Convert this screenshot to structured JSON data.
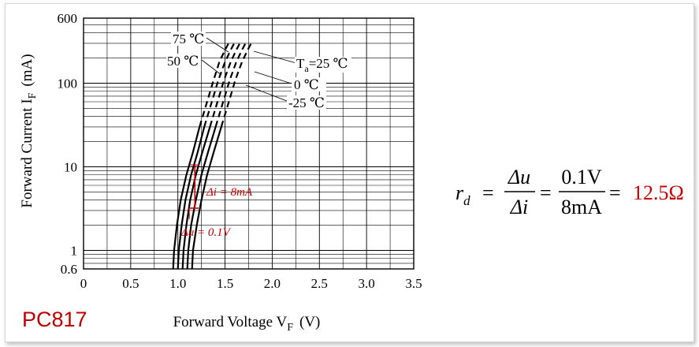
{
  "part_label": "PC817",
  "chart_data": {
    "type": "line",
    "xlabel": "Forward Voltage V",
    "xlabel_sub": "F",
    "xlabel_unit": "(V)",
    "ylabel": "Forward Current I",
    "ylabel_sub": "F",
    "ylabel_unit": "(mA)",
    "x_scale": "linear",
    "y_scale": "log",
    "xlim": [
      0,
      3.5
    ],
    "ylim": [
      0.6,
      600
    ],
    "x_ticks": [
      0,
      0.5,
      1.0,
      1.5,
      2.0,
      2.5,
      3.0,
      3.5
    ],
    "x_tick_labels": [
      "0",
      "0.5",
      "1.0",
      "1.5",
      "2.0",
      "2.5",
      "3.0",
      "3.5"
    ],
    "y_ticks": [
      0.6,
      1,
      10,
      100,
      600
    ],
    "y_tick_labels": [
      "0.6",
      "1",
      "10",
      "100",
      "600"
    ],
    "grid": true,
    "series": [
      {
        "name": "75 ℃",
        "x": [
          0.95,
          0.96,
          0.99,
          1.03,
          1.09,
          1.16,
          1.23,
          1.31,
          1.38,
          1.44,
          1.5,
          1.55
        ],
        "y": [
          0.6,
          1,
          2,
          4,
          8,
          15,
          30,
          60,
          110,
          180,
          250,
          320
        ],
        "dashed_from": 30
      },
      {
        "name": "50 ℃",
        "x": [
          1.0,
          1.01,
          1.04,
          1.08,
          1.14,
          1.21,
          1.28,
          1.36,
          1.43,
          1.5,
          1.56,
          1.61
        ],
        "y": [
          0.6,
          1,
          2,
          4,
          8,
          15,
          30,
          60,
          110,
          180,
          250,
          320
        ],
        "dashed_from": 30
      },
      {
        "name": "T_a=25 ℃",
        "x": [
          1.05,
          1.06,
          1.09,
          1.13,
          1.19,
          1.26,
          1.34,
          1.42,
          1.49,
          1.56,
          1.62,
          1.67
        ],
        "y": [
          0.6,
          1,
          2,
          4,
          8,
          15,
          30,
          60,
          110,
          180,
          250,
          320
        ],
        "dashed_from": 30
      },
      {
        "name": "0 ℃",
        "x": [
          1.1,
          1.11,
          1.14,
          1.19,
          1.25,
          1.32,
          1.4,
          1.48,
          1.55,
          1.62,
          1.68,
          1.73
        ],
        "y": [
          0.6,
          1,
          2,
          4,
          8,
          15,
          30,
          60,
          110,
          180,
          250,
          320
        ],
        "dashed_from": 30
      },
      {
        "name": "-25 ℃",
        "x": [
          1.15,
          1.16,
          1.2,
          1.25,
          1.31,
          1.38,
          1.46,
          1.54,
          1.61,
          1.68,
          1.74,
          1.79
        ],
        "y": [
          0.6,
          1,
          2,
          4,
          8,
          15,
          30,
          60,
          110,
          180,
          250,
          320
        ],
        "dashed_from": 30
      }
    ],
    "series_labels": [
      "75 ℃",
      "50 ℃",
      "T",
      "a",
      "=25 ℃",
      "0 ℃",
      "-25 ℃"
    ],
    "annotations": {
      "delta_i": "Δi = 8mA",
      "delta_u": "Δu = 0.1V",
      "delta_i_range": [
        1.18,
        3.2,
        10.5
      ],
      "delta_u_range": [
        1.12,
        1.22,
        3.2
      ]
    }
  },
  "formula": {
    "lhs": "r",
    "lhs_sub": "d",
    "eq": "=",
    "frac1_num": "Δu",
    "frac1_den": "Δi",
    "frac2_num": "0.1V",
    "frac2_den": "8mA",
    "result": "12.5Ω"
  },
  "colors": {
    "curve": "#000000",
    "annotation": "#cc0000",
    "result": "#cc0000",
    "grid": "#000000"
  }
}
